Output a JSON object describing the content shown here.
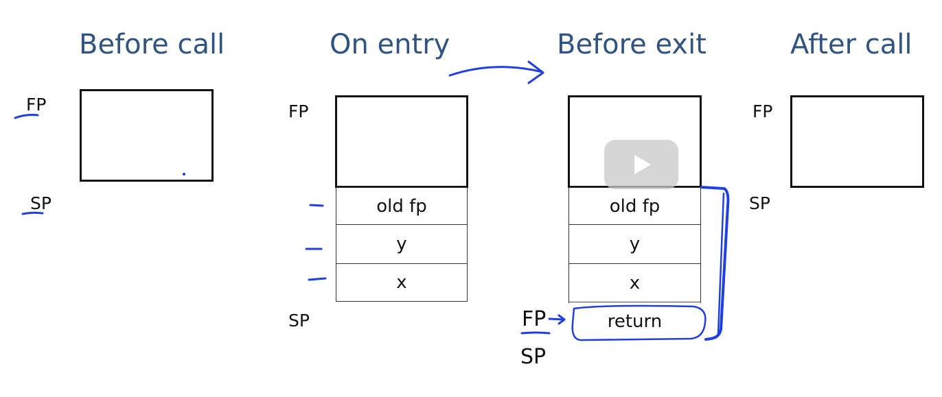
{
  "titles": [
    "Before call",
    "On entry",
    "Before exit",
    "After call"
  ],
  "labels": {
    "fp": "FP",
    "sp": "SP"
  },
  "on_entry_cells": [
    "old fp",
    "y",
    "x"
  ],
  "before_exit_cells": [
    "old fp",
    "y",
    "x",
    "return"
  ],
  "colors": {
    "title": "#2f5483",
    "ink": "#1f3fe0",
    "box": "#111111"
  },
  "icons": [
    "play-icon"
  ]
}
